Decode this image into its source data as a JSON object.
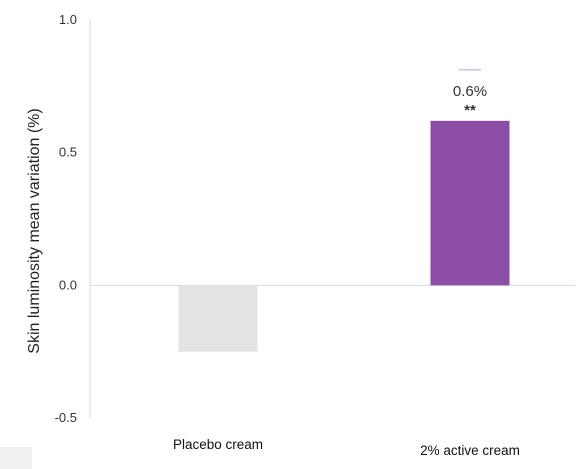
{
  "chart_data": {
    "type": "bar",
    "categories": [
      "Placebo cream",
      "2% active cream"
    ],
    "values": [
      -0.25,
      0.62
    ],
    "colors": [
      "#e2e3e5",
      "#8c4da6"
    ],
    "ylabel": "Skin luminosity mean variation (%)",
    "xlabel": "",
    "ylim": [
      -0.5,
      1.0
    ],
    "yticks": [
      "1.0",
      "0.5",
      "0.0",
      "-0.5"
    ],
    "ytick_values": [
      1.0,
      0.5,
      0.0,
      -0.5
    ],
    "annotations": [
      {
        "category": "2% active cream",
        "label": "0.6%",
        "significance": "**"
      }
    ],
    "grid": false,
    "legend": "none"
  }
}
